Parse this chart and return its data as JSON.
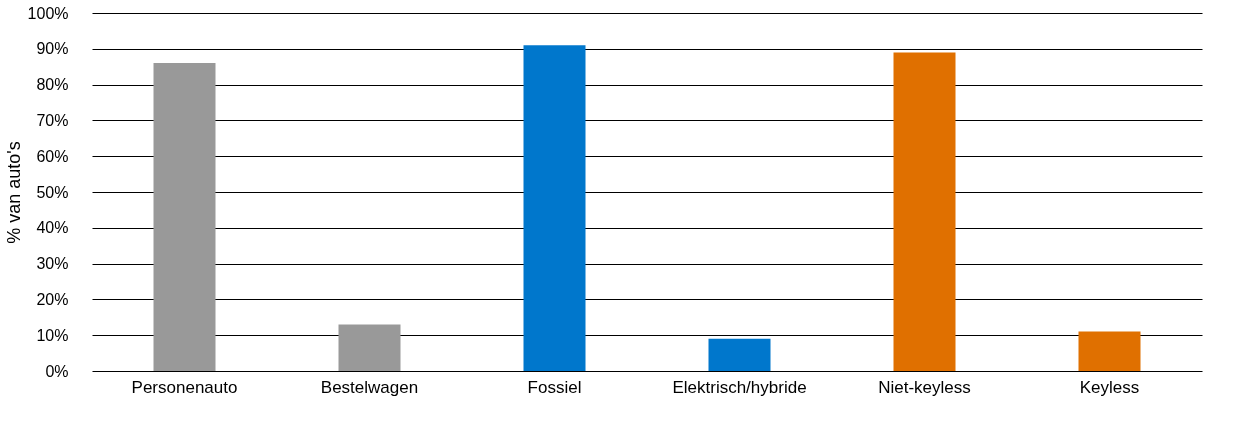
{
  "chart_data": {
    "type": "bar",
    "ylabel": "% van auto's",
    "categories": [
      "Personenauto",
      "Bestelwagen",
      "Fossiel",
      "Elektrisch/hybride",
      "Niet-keyless",
      "Keyless"
    ],
    "values": [
      86,
      13,
      91,
      9,
      89,
      11
    ],
    "colors": [
      "#999999",
      "#999999",
      "#0077cc",
      "#0077cc",
      "#e07000",
      "#e07000"
    ],
    "ylim": [
      0,
      100
    ],
    "yticks": [
      {
        "value": 0,
        "label": "0%"
      },
      {
        "value": 10,
        "label": "10%"
      },
      {
        "value": 20,
        "label": "20%"
      },
      {
        "value": 30,
        "label": "30%"
      },
      {
        "value": 40,
        "label": "40%"
      },
      {
        "value": 50,
        "label": "50%"
      },
      {
        "value": 60,
        "label": "60%"
      },
      {
        "value": 70,
        "label": "70%"
      },
      {
        "value": 80,
        "label": "80%"
      },
      {
        "value": 90,
        "label": "90%"
      },
      {
        "value": 100,
        "label": "100%"
      }
    ],
    "grid": "y"
  }
}
